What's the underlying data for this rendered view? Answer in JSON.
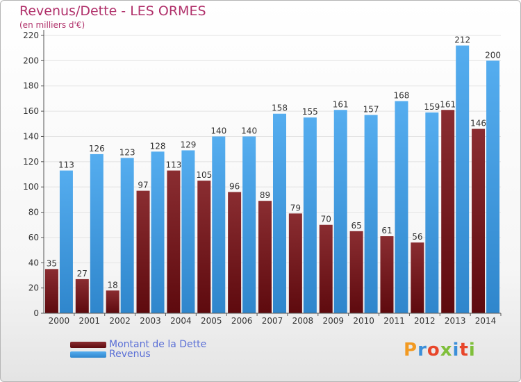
{
  "title": "Revenus/Dette - LES ORMES",
  "subtitle": "(en milliers d'€)",
  "logo_text": "Proxiti",
  "colors": {
    "dette": "#7a1f24",
    "revenus": "#4aa3e6",
    "title": "#b0306a",
    "legend_text": "#5a6fd6"
  },
  "chart_data": {
    "type": "bar",
    "title": "Revenus/Dette - LES ORMES",
    "ylabel": "(en milliers d'€)",
    "xlabel": "",
    "ylim": [
      0,
      220
    ],
    "yticks": [
      0,
      20,
      40,
      60,
      80,
      100,
      120,
      140,
      160,
      180,
      200,
      220
    ],
    "grid": true,
    "legend_position": "bottom-left",
    "categories": [
      "2000",
      "2001",
      "2002",
      "2003",
      "2004",
      "2005",
      "2006",
      "2007",
      "2008",
      "2009",
      "2010",
      "2011",
      "2012",
      "2013",
      "2014"
    ],
    "series": [
      {
        "name": "Montant de la Dette",
        "values": [
          35,
          27,
          18,
          97,
          113,
          105,
          96,
          89,
          79,
          70,
          65,
          61,
          56,
          161,
          146
        ]
      },
      {
        "name": "Revenus",
        "values": [
          113,
          126,
          123,
          128,
          129,
          140,
          140,
          158,
          155,
          161,
          157,
          168,
          159,
          212,
          200
        ]
      }
    ]
  }
}
